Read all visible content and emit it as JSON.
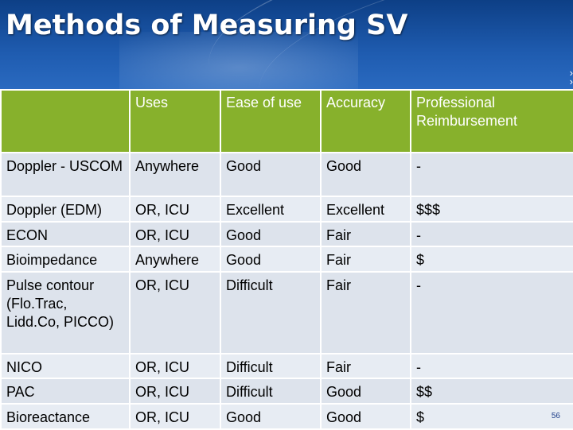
{
  "slide": {
    "title": "Methods of Measuring SV",
    "page_number": "56"
  },
  "table": {
    "headers": [
      "",
      "Uses",
      "Ease of use",
      "Accuracy",
      "Professional Reimbursement"
    ],
    "rows": [
      [
        "Doppler - USCOM",
        "Anywhere",
        "Good",
        "Good",
        "-"
      ],
      [
        "Doppler (EDM)",
        "OR, ICU",
        "Excellent",
        "Excellent",
        "$$$"
      ],
      [
        "ECON",
        "OR, ICU",
        "Good",
        "Fair",
        "-"
      ],
      [
        "Bioimpedance",
        "Anywhere",
        "Good",
        "Fair",
        "$"
      ],
      [
        "Pulse contour (Flo.Trac, Lidd.Co, PICCO)",
        "OR, ICU",
        "Difficult",
        "Fair",
        "-"
      ],
      [
        "NICO",
        "OR, ICU",
        "Difficult",
        "Fair",
        "-"
      ],
      [
        "PAC",
        "OR, ICU",
        "Difficult",
        "Good",
        "$$"
      ],
      [
        "Bioreactance",
        "OR, ICU",
        "Good",
        "Good",
        "$"
      ]
    ]
  },
  "colors": {
    "banner": "#1f5cb0",
    "header_green": "#87b12c",
    "row_bg": "#dde3ec"
  }
}
